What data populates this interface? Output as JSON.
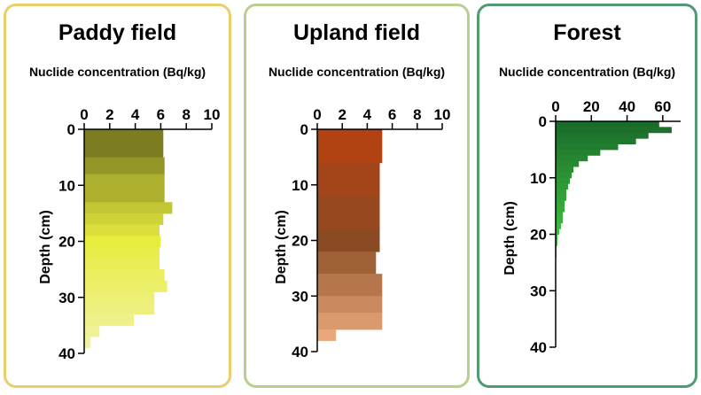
{
  "chart_data": [
    {
      "type": "bar",
      "orientation": "horizontal",
      "title": "Paddy field",
      "xlabel": "Nuclide concentration (Bq/kg)",
      "ylabel": "Depth (cm)",
      "xlim": [
        0,
        10
      ],
      "ylim": [
        0,
        40
      ],
      "xticks": [
        0,
        2,
        4,
        6,
        8,
        10
      ],
      "yticks": [
        0,
        10,
        20,
        30,
        40
      ],
      "color_top": "#6b6d1c",
      "color_mid": "#e8ec3e",
      "color_bottom": "#f1f3aa",
      "bars": [
        {
          "depth_from": 0,
          "depth_to": 5,
          "value": 6.2
        },
        {
          "depth_from": 5,
          "depth_to": 8,
          "value": 6.3
        },
        {
          "depth_from": 8,
          "depth_to": 13,
          "value": 6.3
        },
        {
          "depth_from": 13,
          "depth_to": 15,
          "value": 6.9
        },
        {
          "depth_from": 15,
          "depth_to": 17,
          "value": 6.2
        },
        {
          "depth_from": 17,
          "depth_to": 19,
          "value": 5.9
        },
        {
          "depth_from": 19,
          "depth_to": 21,
          "value": 6.0
        },
        {
          "depth_from": 21,
          "depth_to": 23,
          "value": 5.9
        },
        {
          "depth_from": 23,
          "depth_to": 25,
          "value": 5.9
        },
        {
          "depth_from": 25,
          "depth_to": 27,
          "value": 6.3
        },
        {
          "depth_from": 27,
          "depth_to": 29,
          "value": 6.5
        },
        {
          "depth_from": 29,
          "depth_to": 31,
          "value": 5.5
        },
        {
          "depth_from": 31,
          "depth_to": 33,
          "value": 5.5
        },
        {
          "depth_from": 33,
          "depth_to": 35,
          "value": 3.9
        },
        {
          "depth_from": 35,
          "depth_to": 37,
          "value": 1.2
        },
        {
          "depth_from": 37,
          "depth_to": 39,
          "value": 0.5
        }
      ]
    },
    {
      "type": "bar",
      "orientation": "horizontal",
      "title": "Upland field",
      "xlabel": "Nuclide concentration (Bq/kg)",
      "ylabel": "Depth (cm)",
      "xlim": [
        0,
        10
      ],
      "ylim": [
        0,
        40
      ],
      "xticks": [
        0,
        2,
        4,
        6,
        8,
        10
      ],
      "yticks": [
        0,
        10,
        20,
        30,
        40
      ],
      "color_top": "#b8400e",
      "color_mid": "#8a4a24",
      "color_bottom": "#f9b88a",
      "bars": [
        {
          "depth_from": 0,
          "depth_to": 6,
          "value": 5.2
        },
        {
          "depth_from": 6,
          "depth_to": 12,
          "value": 5.0
        },
        {
          "depth_from": 12,
          "depth_to": 18,
          "value": 5.0
        },
        {
          "depth_from": 18,
          "depth_to": 22,
          "value": 5.0
        },
        {
          "depth_from": 22,
          "depth_to": 26,
          "value": 4.7
        },
        {
          "depth_from": 26,
          "depth_to": 30,
          "value": 5.2
        },
        {
          "depth_from": 30,
          "depth_to": 33,
          "value": 5.2
        },
        {
          "depth_from": 33,
          "depth_to": 36,
          "value": 5.2
        },
        {
          "depth_from": 36,
          "depth_to": 38,
          "value": 1.5
        }
      ]
    },
    {
      "type": "bar",
      "orientation": "horizontal",
      "title": "Forest",
      "xlabel": "Nuclide concentration (Bq/kg)",
      "ylabel": "Depth (cm)",
      "xlim": [
        0,
        70
      ],
      "ylim": [
        0,
        40
      ],
      "xticks": [
        0,
        20,
        40,
        60
      ],
      "yticks": [
        0,
        10,
        20,
        30,
        40
      ],
      "color_top": "#1a6a2a",
      "color_mid": "#3fbd3f",
      "color_bottom": "#8cdc7c",
      "bars": [
        {
          "depth_from": 0,
          "depth_to": 1,
          "value": 58
        },
        {
          "depth_from": 1,
          "depth_to": 2,
          "value": 65
        },
        {
          "depth_from": 2,
          "depth_to": 3,
          "value": 52
        },
        {
          "depth_from": 3,
          "depth_to": 4,
          "value": 45
        },
        {
          "depth_from": 4,
          "depth_to": 5,
          "value": 35
        },
        {
          "depth_from": 5,
          "depth_to": 6,
          "value": 25
        },
        {
          "depth_from": 6,
          "depth_to": 7,
          "value": 18
        },
        {
          "depth_from": 7,
          "depth_to": 8,
          "value": 13
        },
        {
          "depth_from": 8,
          "depth_to": 9,
          "value": 10
        },
        {
          "depth_from": 9,
          "depth_to": 10,
          "value": 9
        },
        {
          "depth_from": 10,
          "depth_to": 11,
          "value": 8
        },
        {
          "depth_from": 11,
          "depth_to": 12,
          "value": 7
        },
        {
          "depth_from": 12,
          "depth_to": 13,
          "value": 6
        },
        {
          "depth_from": 13,
          "depth_to": 14,
          "value": 6
        },
        {
          "depth_from": 14,
          "depth_to": 15,
          "value": 5
        },
        {
          "depth_from": 15,
          "depth_to": 16,
          "value": 5
        },
        {
          "depth_from": 16,
          "depth_to": 17,
          "value": 4
        },
        {
          "depth_from": 17,
          "depth_to": 18,
          "value": 4
        },
        {
          "depth_from": 18,
          "depth_to": 19,
          "value": 3
        },
        {
          "depth_from": 19,
          "depth_to": 20,
          "value": 2
        },
        {
          "depth_from": 20,
          "depth_to": 22,
          "value": 1
        },
        {
          "depth_from": 22,
          "depth_to": 24,
          "value": 0.5
        }
      ]
    }
  ]
}
